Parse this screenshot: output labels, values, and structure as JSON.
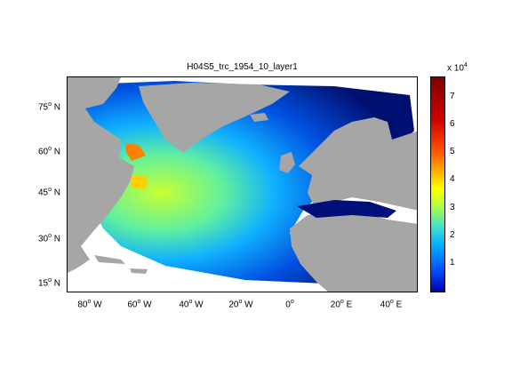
{
  "title": "H04S5_trc_1954_10_layer1",
  "latitude_labels": [
    {
      "text": "75",
      "hemi": "N"
    },
    {
      "text": "60",
      "hemi": "N"
    },
    {
      "text": "45",
      "hemi": "N"
    },
    {
      "text": "30",
      "hemi": "N"
    },
    {
      "text": "15",
      "hemi": "N"
    }
  ],
  "longitude_labels": [
    {
      "text": "80",
      "hemi": "W"
    },
    {
      "text": "60",
      "hemi": "W"
    },
    {
      "text": "40",
      "hemi": "W"
    },
    {
      "text": "20",
      "hemi": "W"
    },
    {
      "text": "0",
      "hemi": ""
    },
    {
      "text": "20",
      "hemi": "E"
    },
    {
      "text": "40",
      "hemi": "E"
    }
  ],
  "colorbar": {
    "exponent_base": "x 10",
    "exponent_power": "4",
    "ticks": [
      "7",
      "6",
      "5",
      "4",
      "3",
      "2",
      "1"
    ]
  },
  "colors": {
    "land": "#a6a6a6",
    "high": "#800000",
    "low": "#00007f"
  }
}
